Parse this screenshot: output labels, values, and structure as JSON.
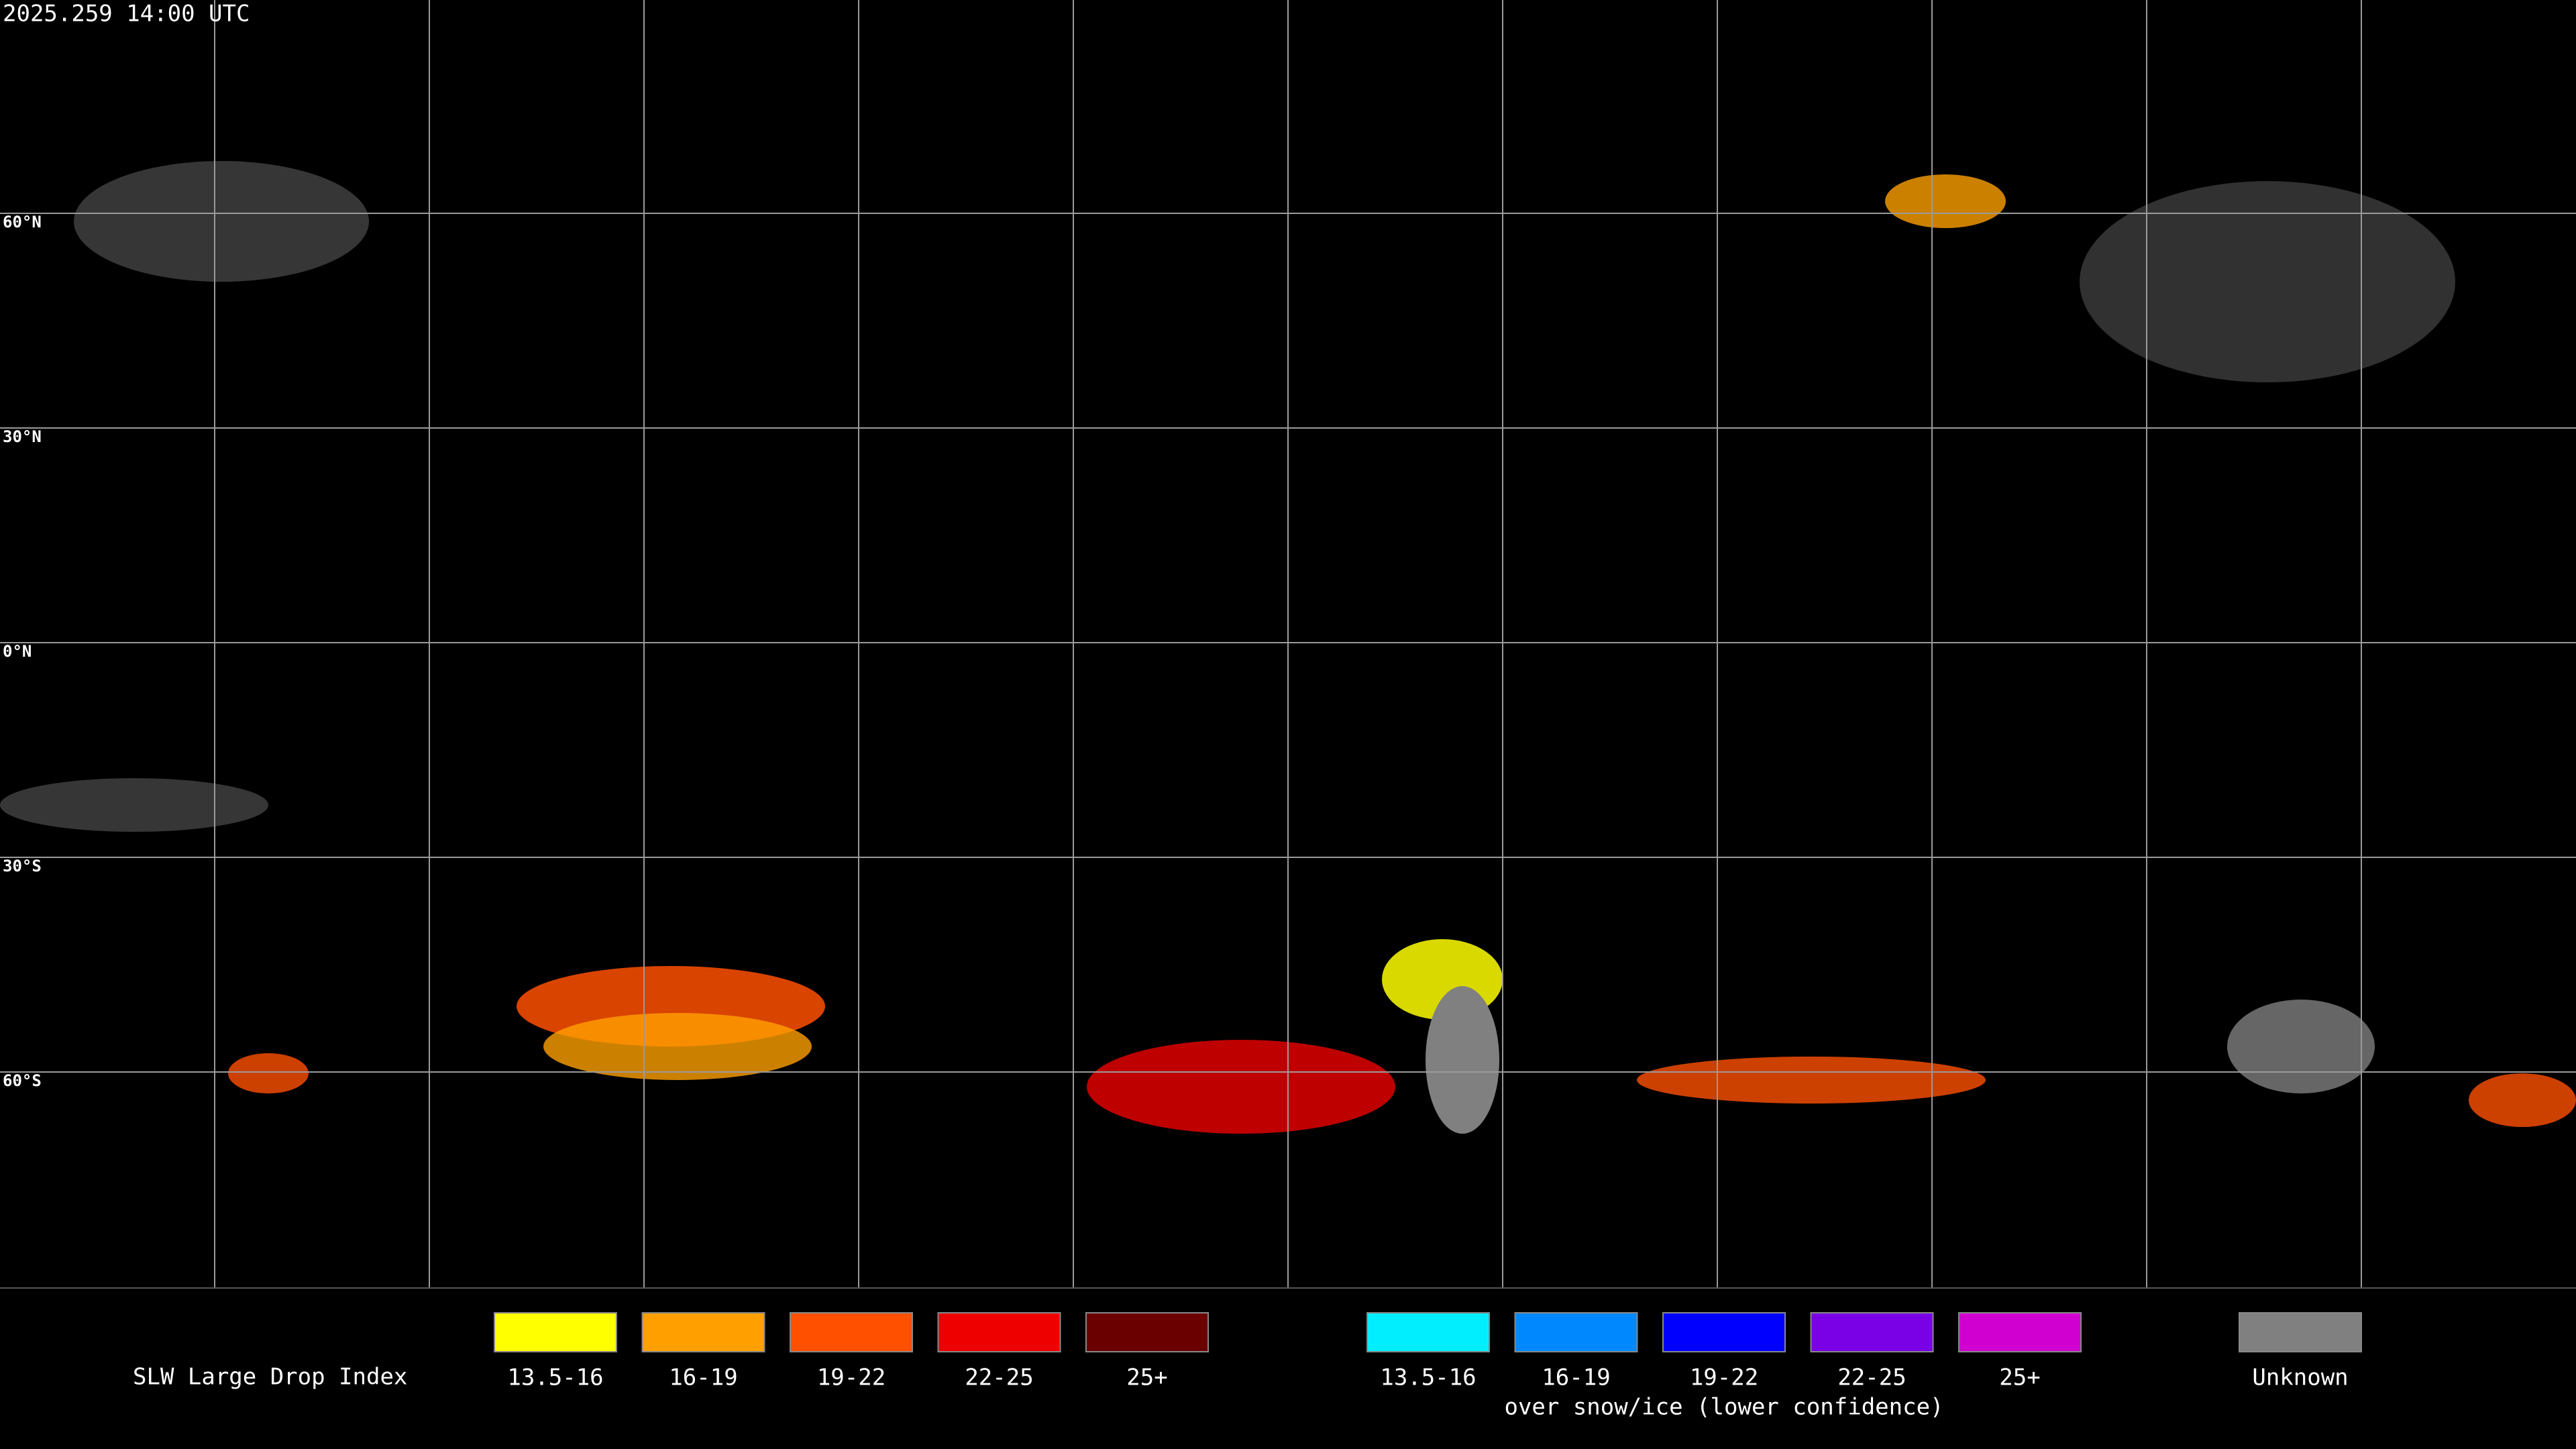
{
  "timestamp": "2025.259 14:00 UTC",
  "latitude_labels": [
    "60°N",
    "30°N",
    "0°N",
    "30°S",
    "60°S"
  ],
  "legend": {
    "title": "SLW Large Drop Index",
    "groups": [
      {
        "items": [
          {
            "label": "13.5-16",
            "color": "#ffff00"
          },
          {
            "label": "16-19",
            "color": "#ffa000"
          },
          {
            "label": "19-22",
            "color": "#ff5000"
          },
          {
            "label": "22-25",
            "color": "#ee0000"
          },
          {
            "label": "25+",
            "color": "#6a0000"
          }
        ]
      },
      {
        "items": [
          {
            "label": "13.5-16",
            "color": "#00eeff"
          },
          {
            "label": "16-19",
            "color": "#0088ff"
          },
          {
            "label": "19-22",
            "color": "#0000ff"
          },
          {
            "label": "22-25",
            "color": "#7a00e6"
          },
          {
            "label": "25+",
            "color": "#d000d0"
          }
        ],
        "caption": "over snow/ice (lower confidence)"
      },
      {
        "items": [
          {
            "label": "Unknown",
            "color": "#808080"
          }
        ]
      }
    ]
  }
}
